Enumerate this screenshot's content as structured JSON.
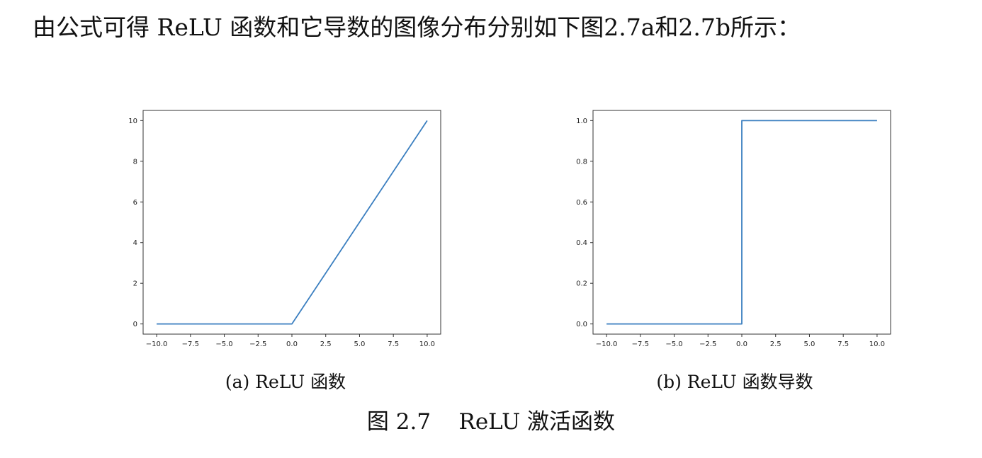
{
  "intro_text": "由公式可得 ReLU 函数和它导数的图像分布分别如下图2.7a和2.7b所示：",
  "subcaptions": {
    "a": "(a) ReLU 函数",
    "b": "(b) ReLU 函数导数"
  },
  "figure_caption": "图 2.7    ReLU 激活函数",
  "chart_data": [
    {
      "type": "line",
      "title": "",
      "xlabel": "",
      "ylabel": "",
      "xlim": [
        -11,
        11
      ],
      "ylim": [
        -0.5,
        10.5
      ],
      "x_ticks": [
        -10,
        -7.5,
        -5,
        -2.5,
        0,
        2.5,
        5,
        7.5,
        10
      ],
      "x_tick_labels": [
        "−10.0",
        "−7.5",
        "−5.0",
        "−2.5",
        "0.0",
        "2.5",
        "5.0",
        "7.5",
        "10.0"
      ],
      "y_ticks": [
        0,
        2,
        4,
        6,
        8,
        10
      ],
      "y_tick_labels": [
        "0",
        "2",
        "4",
        "6",
        "8",
        "10"
      ],
      "grid": false,
      "line_color": "#3b7fc0",
      "series": [
        {
          "x": [
            -10,
            0,
            10
          ],
          "y": [
            0,
            0,
            10
          ]
        }
      ]
    },
    {
      "type": "line",
      "title": "",
      "xlabel": "",
      "ylabel": "",
      "xlim": [
        -11,
        11
      ],
      "ylim": [
        -0.05,
        1.05
      ],
      "x_ticks": [
        -10,
        -7.5,
        -5,
        -2.5,
        0,
        2.5,
        5,
        7.5,
        10
      ],
      "x_tick_labels": [
        "−10.0",
        "−7.5",
        "−5.0",
        "−2.5",
        "0.0",
        "2.5",
        "5.0",
        "7.5",
        "10.0"
      ],
      "y_ticks": [
        0,
        0.2,
        0.4,
        0.6,
        0.8,
        1.0
      ],
      "y_tick_labels": [
        "0.0",
        "0.2",
        "0.4",
        "0.6",
        "0.8",
        "1.0"
      ],
      "grid": false,
      "line_color": "#3b7fc0",
      "series": [
        {
          "x": [
            -10,
            0,
            0,
            10
          ],
          "y": [
            0,
            0,
            1,
            1
          ]
        }
      ]
    }
  ]
}
